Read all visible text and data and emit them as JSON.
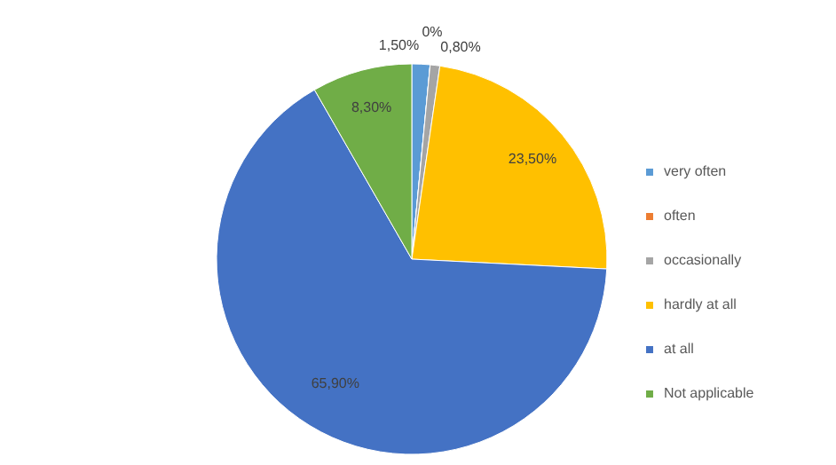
{
  "chart_data": {
    "type": "pie",
    "categories": [
      "very often",
      "often",
      "occasionally",
      "hardly at all",
      "at all",
      "Not applicable"
    ],
    "values": [
      1.5,
      0,
      0.8,
      23.5,
      65.9,
      8.3
    ],
    "colors": [
      "#5b9bd5",
      "#ed7d31",
      "#a5a5a5",
      "#ffc000",
      "#4472c4",
      "#70ad47"
    ],
    "value_labels": [
      "1,50%",
      "0%",
      "0,80%",
      "23,50%",
      "65,90%",
      "8,30%"
    ],
    "legend": "right"
  }
}
